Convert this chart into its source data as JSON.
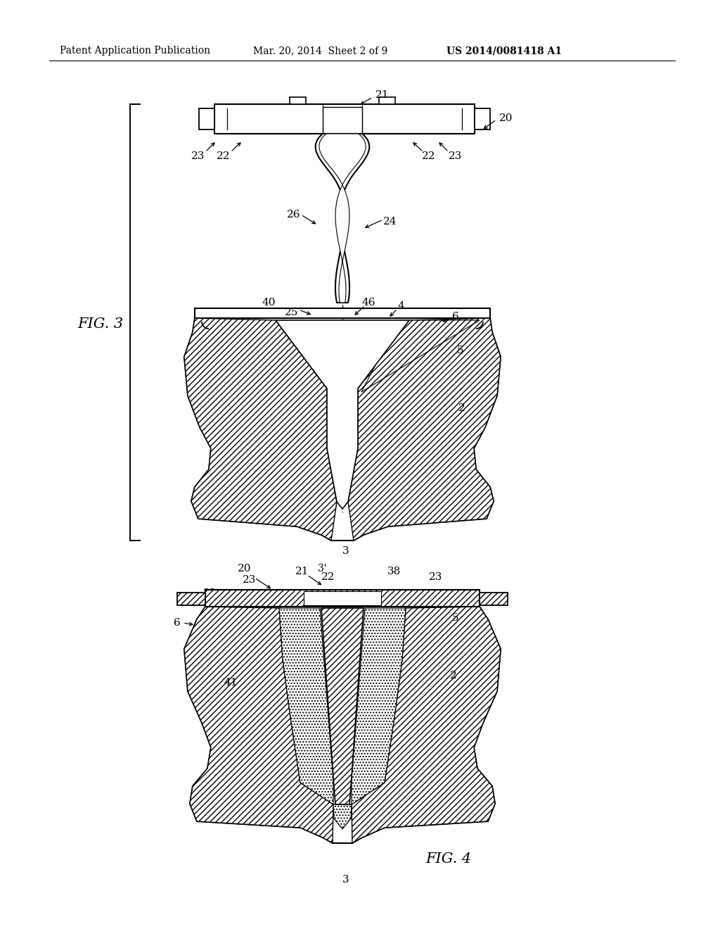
{
  "header_left": "Patent Application Publication",
  "header_mid": "Mar. 20, 2014  Sheet 2 of 9",
  "header_right": "US 2014/0081418 A1",
  "fig3_label": "FIG. 3",
  "fig4_label": "FIG. 4",
  "bg_color": "#ffffff",
  "line_color": "#000000",
  "header_fontsize": 10,
  "fig_label_fontsize": 15,
  "annotation_fontsize": 11
}
